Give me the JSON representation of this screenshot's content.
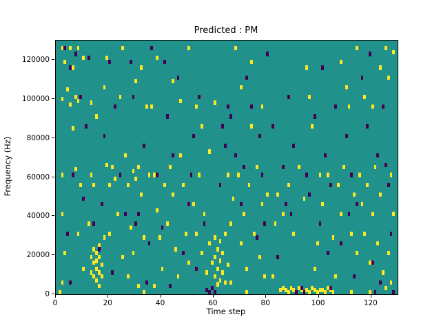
{
  "chart_data": {
    "type": "heatmap",
    "title": "Predicted : PM",
    "xlabel": "Time step",
    "ylabel": "Frequency (Hz)",
    "xlim": [
      0,
      130
    ],
    "ylim": [
      0,
      130000
    ],
    "x_ticks": [
      0,
      20,
      40,
      60,
      80,
      100,
      120
    ],
    "y_ticks": [
      0,
      20000,
      40000,
      60000,
      80000,
      100000,
      120000
    ],
    "grid": false,
    "legend": null,
    "colormap": "viridis (3-level)",
    "colors": {
      "mid_background": "#21918c",
      "high": "#fde725",
      "low": "#440154",
      "axis": "#000000",
      "figure_background": "#ffffff"
    },
    "cells": {
      "grid_size": [
        130,
        130
      ],
      "row_unit_hz": 1000,
      "yellow": [
        [
          1,
          0
        ],
        [
          2,
          125
        ],
        [
          2,
          99
        ],
        [
          2,
          60
        ],
        [
          2,
          40
        ],
        [
          2,
          5
        ],
        [
          3,
          118
        ],
        [
          3,
          20
        ],
        [
          4,
          104
        ],
        [
          5,
          125
        ],
        [
          5,
          96
        ],
        [
          6,
          115
        ],
        [
          6,
          84
        ],
        [
          7,
          100
        ],
        [
          7,
          63
        ],
        [
          8,
          125
        ],
        [
          8,
          98
        ],
        [
          8,
          30
        ],
        [
          9,
          55
        ],
        [
          10,
          120
        ],
        [
          10,
          12
        ],
        [
          12,
          35
        ],
        [
          13,
          18
        ],
        [
          13,
          10
        ],
        [
          13,
          60
        ],
        [
          13,
          97
        ],
        [
          14,
          22
        ],
        [
          14,
          15
        ],
        [
          14,
          8
        ],
        [
          14,
          55
        ],
        [
          15,
          20
        ],
        [
          15,
          16
        ],
        [
          15,
          12
        ],
        [
          15,
          6
        ],
        [
          15,
          90
        ],
        [
          16,
          24
        ],
        [
          16,
          18
        ],
        [
          16,
          10
        ],
        [
          16,
          3
        ],
        [
          17,
          14
        ],
        [
          17,
          8
        ],
        [
          18,
          28
        ],
        [
          18,
          105
        ],
        [
          19,
          65
        ],
        [
          19,
          120
        ],
        [
          20,
          55
        ],
        [
          20,
          30
        ],
        [
          21,
          64
        ],
        [
          22,
          58
        ],
        [
          23,
          40
        ],
        [
          24,
          100
        ],
        [
          25,
          18
        ],
        [
          25,
          125
        ],
        [
          26,
          70
        ],
        [
          27,
          55
        ],
        [
          27,
          8
        ],
        [
          28,
          33
        ],
        [
          29,
          62
        ],
        [
          29,
          20
        ],
        [
          30,
          58
        ],
        [
          30,
          108
        ],
        [
          31,
          64
        ],
        [
          31,
          3
        ],
        [
          32,
          50
        ],
        [
          32,
          115
        ],
        [
          33,
          28
        ],
        [
          33,
          0
        ],
        [
          34,
          95
        ],
        [
          35,
          60
        ],
        [
          36,
          95
        ],
        [
          37,
          60
        ],
        [
          37,
          3
        ],
        [
          38,
          42
        ],
        [
          38,
          120
        ],
        [
          39,
          28
        ],
        [
          40,
          12
        ],
        [
          41,
          55
        ],
        [
          42,
          35
        ],
        [
          43,
          64
        ],
        [
          44,
          50
        ],
        [
          44,
          108
        ],
        [
          45,
          22
        ],
        [
          46,
          8
        ],
        [
          47,
          70
        ],
        [
          47,
          98
        ],
        [
          48,
          55
        ],
        [
          49,
          30
        ],
        [
          50,
          15
        ],
        [
          50,
          125
        ],
        [
          52,
          45
        ],
        [
          53,
          30
        ],
        [
          53,
          95
        ],
        [
          54,
          60
        ],
        [
          55,
          20
        ],
        [
          55,
          85
        ],
        [
          56,
          40
        ],
        [
          57,
          10
        ],
        [
          58,
          25
        ],
        [
          58,
          72
        ],
        [
          59,
          15
        ],
        [
          60,
          28
        ],
        [
          60,
          18
        ],
        [
          60,
          8
        ],
        [
          60,
          97
        ],
        [
          61,
          22
        ],
        [
          61,
          12
        ],
        [
          61,
          4
        ],
        [
          62,
          26
        ],
        [
          62,
          16
        ],
        [
          62,
          6
        ],
        [
          63,
          20
        ],
        [
          63,
          10
        ],
        [
          64,
          30
        ],
        [
          64,
          5
        ],
        [
          65,
          14
        ],
        [
          65,
          60
        ],
        [
          66,
          35
        ],
        [
          66,
          5
        ],
        [
          67,
          48
        ],
        [
          68,
          125
        ],
        [
          69,
          60
        ],
        [
          70,
          25
        ],
        [
          70,
          105
        ],
        [
          71,
          40
        ],
        [
          72,
          12
        ],
        [
          72,
          0
        ],
        [
          73,
          55
        ],
        [
          74,
          85
        ],
        [
          74,
          118
        ],
        [
          75,
          30
        ],
        [
          76,
          64
        ],
        [
          77,
          18
        ],
        [
          78,
          45
        ],
        [
          78,
          95
        ],
        [
          79,
          8
        ],
        [
          80,
          50
        ],
        [
          82,
          8
        ],
        [
          83,
          35
        ],
        [
          84,
          50
        ],
        [
          85,
          1
        ],
        [
          86,
          2
        ],
        [
          86,
          40
        ],
        [
          87,
          1
        ],
        [
          88,
          0
        ],
        [
          88,
          55
        ],
        [
          89,
          2
        ],
        [
          90,
          1
        ],
        [
          90,
          30
        ],
        [
          91,
          0
        ],
        [
          92,
          2
        ],
        [
          92,
          64
        ],
        [
          93,
          1
        ],
        [
          94,
          48
        ],
        [
          95,
          1
        ],
        [
          95,
          115
        ],
        [
          96,
          0
        ],
        [
          96,
          100
        ],
        [
          97,
          2
        ],
        [
          97,
          85
        ],
        [
          98,
          1
        ],
        [
          98,
          12
        ],
        [
          99,
          0
        ],
        [
          99,
          25
        ],
        [
          100,
          1
        ],
        [
          100,
          60
        ],
        [
          101,
          1
        ],
        [
          101,
          45
        ],
        [
          102,
          0
        ],
        [
          103,
          2
        ],
        [
          103,
          60
        ],
        [
          104,
          1
        ],
        [
          105,
          0
        ],
        [
          105,
          28
        ],
        [
          106,
          8
        ],
        [
          107,
          55
        ],
        [
          108,
          40
        ],
        [
          108,
          118
        ],
        [
          109,
          64
        ],
        [
          110,
          105
        ],
        [
          111,
          95
        ],
        [
          112,
          30
        ],
        [
          112,
          0
        ],
        [
          113,
          50
        ],
        [
          114,
          20
        ],
        [
          114,
          125
        ],
        [
          115,
          60
        ],
        [
          116,
          45
        ],
        [
          117,
          30
        ],
        [
          117,
          100
        ],
        [
          118,
          55
        ],
        [
          119,
          15
        ],
        [
          119,
          0
        ],
        [
          120,
          40
        ],
        [
          120,
          95
        ],
        [
          121,
          64
        ],
        [
          122,
          25
        ],
        [
          123,
          50
        ],
        [
          123,
          115
        ],
        [
          124,
          10
        ],
        [
          125,
          125
        ],
        [
          125,
          2
        ],
        [
          126,
          110
        ],
        [
          126,
          20
        ],
        [
          127,
          60
        ],
        [
          127,
          5
        ],
        [
          128,
          123
        ],
        [
          128,
          40
        ]
      ],
      "dark": [
        [
          3,
          125
        ],
        [
          4,
          30
        ],
        [
          5,
          115
        ],
        [
          5,
          5
        ],
        [
          6,
          60
        ],
        [
          7,
          122
        ],
        [
          9,
          100
        ],
        [
          10,
          48
        ],
        [
          11,
          85
        ],
        [
          12,
          120
        ],
        [
          14,
          35
        ],
        [
          16,
          22
        ],
        [
          17,
          45
        ],
        [
          18,
          80
        ],
        [
          20,
          118
        ],
        [
          21,
          10
        ],
        [
          22,
          95
        ],
        [
          24,
          60
        ],
        [
          26,
          40
        ],
        [
          28,
          118
        ],
        [
          29,
          100
        ],
        [
          30,
          35
        ],
        [
          31,
          40
        ],
        [
          33,
          75
        ],
        [
          34,
          5
        ],
        [
          35,
          25
        ],
        [
          36,
          125
        ],
        [
          38,
          60
        ],
        [
          40,
          33
        ],
        [
          41,
          118
        ],
        [
          42,
          90
        ],
        [
          43,
          3
        ],
        [
          44,
          70
        ],
        [
          46,
          110
        ],
        [
          48,
          20
        ],
        [
          50,
          45
        ],
        [
          51,
          60
        ],
        [
          52,
          80
        ],
        [
          53,
          12
        ],
        [
          54,
          100
        ],
        [
          56,
          35
        ],
        [
          57,
          1
        ],
        [
          58,
          0
        ],
        [
          59,
          2
        ],
        [
          60,
          0
        ],
        [
          62,
          55
        ],
        [
          63,
          85
        ],
        [
          64,
          75
        ],
        [
          65,
          95
        ],
        [
          66,
          90
        ],
        [
          68,
          70
        ],
        [
          70,
          45
        ],
        [
          71,
          64
        ],
        [
          72,
          110
        ],
        [
          74,
          95
        ],
        [
          76,
          28
        ],
        [
          77,
          80
        ],
        [
          78,
          60
        ],
        [
          79,
          35
        ],
        [
          80,
          122
        ],
        [
          82,
          85
        ],
        [
          84,
          18
        ],
        [
          86,
          64
        ],
        [
          87,
          45
        ],
        [
          88,
          100
        ],
        [
          89,
          40
        ],
        [
          90,
          75
        ],
        [
          91,
          0
        ],
        [
          93,
          2
        ],
        [
          94,
          0
        ],
        [
          95,
          60
        ],
        [
          96,
          50
        ],
        [
          98,
          90
        ],
        [
          100,
          35
        ],
        [
          101,
          115
        ],
        [
          102,
          70
        ],
        [
          103,
          20
        ],
        [
          104,
          55
        ],
        [
          104,
          2
        ],
        [
          106,
          95
        ],
        [
          108,
          25
        ],
        [
          110,
          80
        ],
        [
          111,
          40
        ],
        [
          112,
          60
        ],
        [
          113,
          8
        ],
        [
          114,
          45
        ],
        [
          116,
          110
        ],
        [
          118,
          85
        ],
        [
          119,
          122
        ],
        [
          120,
          15
        ],
        [
          121,
          0
        ],
        [
          122,
          70
        ],
        [
          123,
          5
        ],
        [
          124,
          95
        ],
        [
          125,
          65
        ],
        [
          126,
          55
        ],
        [
          127,
          30
        ],
        [
          128,
          0
        ]
      ]
    }
  }
}
